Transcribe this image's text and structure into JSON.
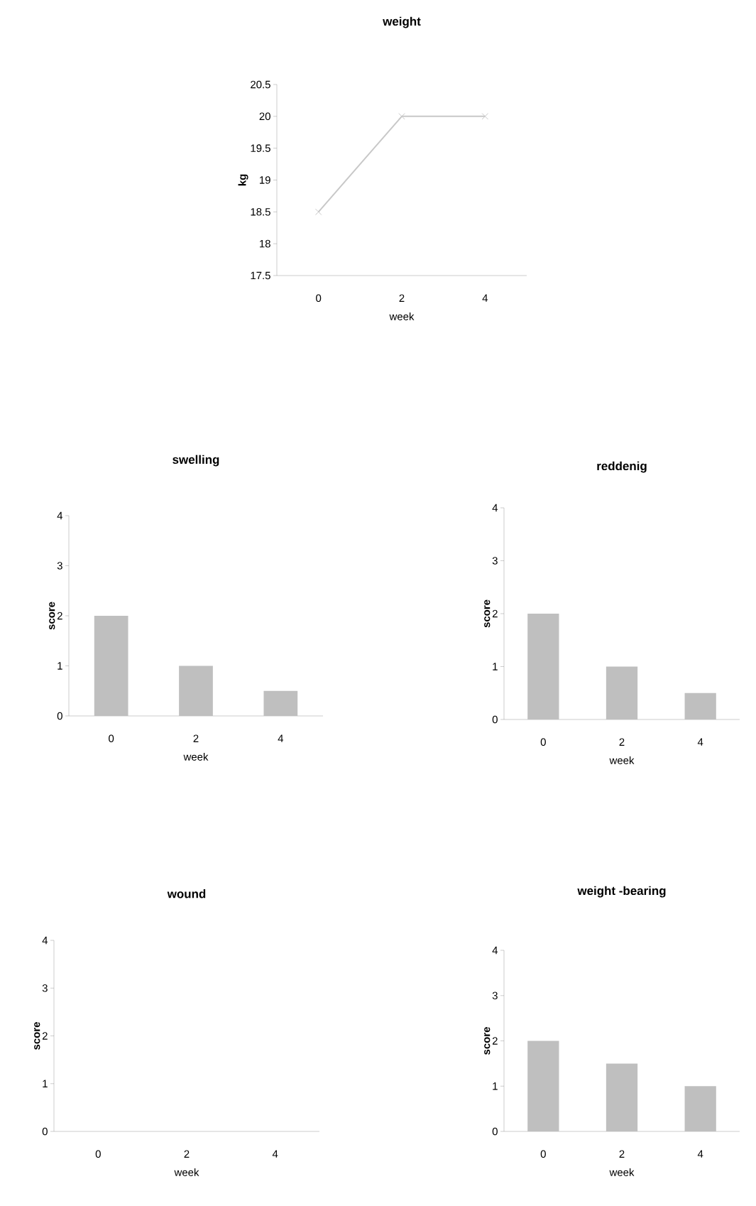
{
  "chart_data": [
    {
      "type": "line",
      "title": "weight",
      "xlabel": "week",
      "ylabel": "kg",
      "categories": [
        "0",
        "2",
        "4"
      ],
      "values": [
        18.5,
        20,
        20
      ],
      "color": "#c8c8c8",
      "marker": "cross",
      "ylim": [
        17.5,
        20.5
      ],
      "yticks": [
        17.5,
        18,
        18.5,
        19,
        19.5,
        20,
        20.5
      ]
    },
    {
      "type": "bar",
      "title": "swelling",
      "xlabel": "week",
      "ylabel": "score",
      "categories": [
        "0",
        "2",
        "4"
      ],
      "values": [
        2,
        1,
        0.5
      ],
      "color": "#bfbfbf",
      "ylim": [
        0,
        4
      ],
      "yticks": [
        0,
        1,
        2,
        3,
        4
      ]
    },
    {
      "type": "bar",
      "title": "reddenig",
      "xlabel": "week",
      "ylabel": "score",
      "categories": [
        "0",
        "2",
        "4"
      ],
      "values": [
        2,
        1,
        0.5
      ],
      "color": "#bfbfbf",
      "ylim": [
        0,
        4
      ],
      "yticks": [
        0,
        1,
        2,
        3,
        4
      ]
    },
    {
      "type": "bar",
      "title": "wound",
      "xlabel": "week",
      "ylabel": "score",
      "categories": [
        "0",
        "2",
        "4"
      ],
      "values": [
        0,
        0,
        0
      ],
      "color": "#bfbfbf",
      "ylim": [
        0,
        4
      ],
      "yticks": [
        0,
        1,
        2,
        3,
        4
      ]
    },
    {
      "type": "bar",
      "title": "weight -bearing",
      "xlabel": "week",
      "ylabel": "score",
      "categories": [
        "0",
        "2",
        "4"
      ],
      "values": [
        2,
        1.5,
        1
      ],
      "color": "#bfbfbf",
      "ylim": [
        0,
        4
      ],
      "yticks": [
        0,
        1,
        2,
        3,
        4
      ]
    }
  ]
}
